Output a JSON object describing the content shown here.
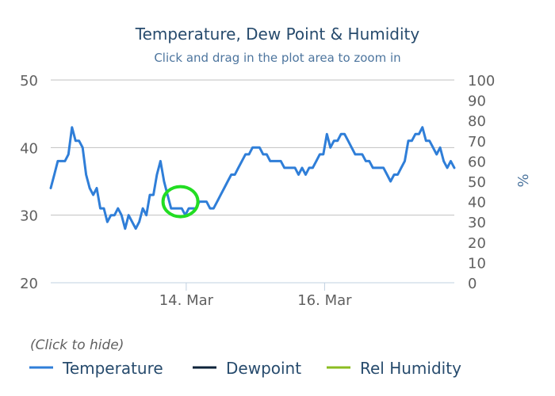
{
  "chart_data": {
    "type": "line",
    "title": "Temperature, Dew Point & Humidity",
    "subtitle": "Click and drag in the plot area to zoom in",
    "legend_hint": "(Click to hide)",
    "x_tick_labels": [
      "14. Mar",
      "16. Mar"
    ],
    "y_left": {
      "ticks": [
        20,
        30,
        40,
        50
      ],
      "range": [
        20,
        50
      ]
    },
    "y_right": {
      "ticks": [
        0,
        10,
        20,
        30,
        40,
        50,
        60,
        70,
        80,
        90,
        100
      ],
      "range": [
        0,
        100
      ],
      "unit": "%"
    },
    "x_range": [
      0,
      140
    ],
    "grid": true,
    "legend_position": "bottom",
    "series": [
      {
        "name": "Temperature",
        "color": "#2f7ed8",
        "visible": true,
        "values": [
          34,
          36,
          38,
          38,
          38,
          39,
          43,
          41,
          41,
          40,
          36,
          34,
          33,
          34,
          31,
          31,
          29,
          30,
          30,
          31,
          30,
          28,
          30,
          29,
          28,
          29,
          31,
          30,
          33,
          33,
          36,
          38,
          35,
          33,
          31,
          31,
          31,
          31,
          30,
          31,
          31,
          31,
          32,
          32,
          32,
          31,
          31,
          32,
          33,
          34,
          35,
          36,
          36,
          37,
          38,
          39,
          39,
          40,
          40,
          40,
          39,
          39,
          38,
          38,
          38,
          38,
          37,
          37,
          37,
          37,
          36,
          37,
          36,
          37,
          37,
          38,
          39,
          39,
          42,
          40,
          41,
          41,
          42,
          42,
          41,
          40,
          39,
          39,
          39,
          38,
          38,
          37,
          37,
          37,
          37,
          36,
          35,
          36,
          36,
          37,
          38,
          41,
          41,
          42,
          42,
          43,
          41,
          41,
          40,
          39,
          40,
          38,
          37,
          38,
          37
        ]
      },
      {
        "name": "Dewpoint",
        "color": "#0d233a",
        "visible": true,
        "values": []
      },
      {
        "name": "Rel Humidity",
        "color": "#8bbc21",
        "visible": true,
        "values": []
      }
    ],
    "annotations": [
      {
        "type": "circle-highlight",
        "color": "#22dd22",
        "x": 45,
        "y": 32
      }
    ]
  }
}
